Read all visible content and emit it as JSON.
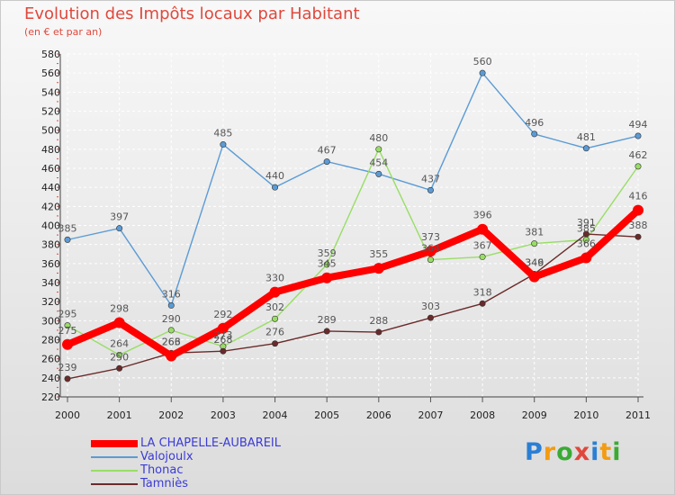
{
  "chart_data": {
    "type": "line",
    "title": "Evolution des Impôts locaux par Habitant",
    "subtitle": "(en € et par an)",
    "x": [
      "2000",
      "2001",
      "2002",
      "2003",
      "2004",
      "2005",
      "2006",
      "2007",
      "2008",
      "2009",
      "2010",
      "2011"
    ],
    "ylim": [
      220,
      580
    ],
    "yticks": [
      220,
      240,
      260,
      280,
      300,
      320,
      340,
      360,
      380,
      400,
      420,
      440,
      460,
      480,
      500,
      520,
      540,
      560,
      580
    ],
    "grid": true,
    "legend_position": "bottom-left",
    "series": [
      {
        "name": "LA CHAPELLE-AUBAREIL",
        "color": "#ff0000",
        "values": [
          275,
          298,
          263,
          292,
          330,
          345,
          355,
          373,
          396,
          346,
          366,
          416
        ]
      },
      {
        "name": "Valojoulx",
        "color": "#5b9bd5",
        "values": [
          385,
          397,
          316,
          485,
          440,
          467,
          454,
          437,
          560,
          496,
          481,
          494
        ]
      },
      {
        "name": "Thonac",
        "color": "#99dd66",
        "values": [
          295,
          264,
          290,
          273,
          302,
          359,
          480,
          364,
          367,
          381,
          385,
          462
        ]
      },
      {
        "name": "Tamniès",
        "color": "#6b2a2a",
        "values": [
          239,
          250,
          266,
          268,
          276,
          289,
          288,
          303,
          318,
          349,
          391,
          388
        ]
      }
    ]
  },
  "logo": {
    "text": "Proxiti",
    "colors": [
      "#2a7fd4",
      "#f39c12",
      "#3aaa35",
      "#e0483c",
      "#2a7fd4",
      "#f39c12",
      "#3aaa35"
    ]
  }
}
